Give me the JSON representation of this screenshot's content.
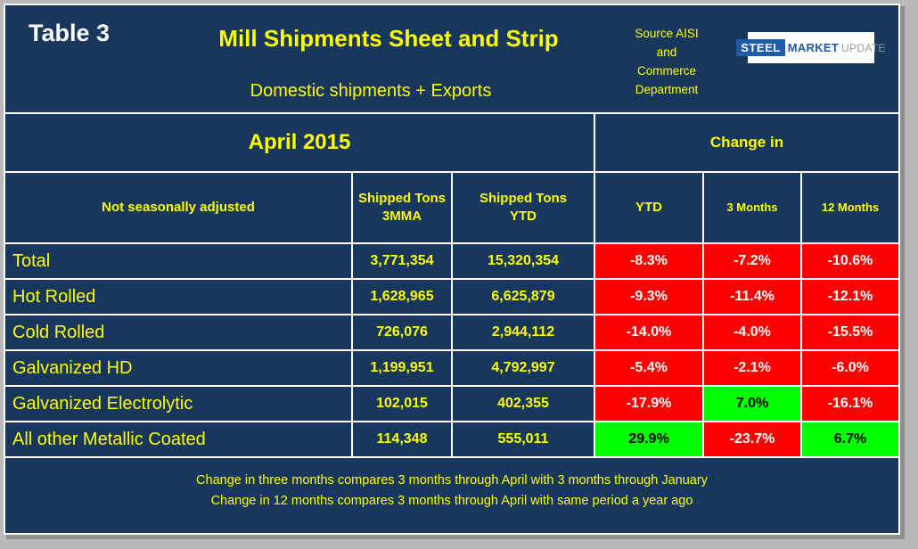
{
  "header": {
    "table_label": "Table 3",
    "source_text": "Source AISI\nand\nCommerce\nDepartment",
    "logo": {
      "steel": "STEEL",
      "market": "MARKET",
      "update": "UPDATE"
    }
  },
  "chart_data": {
    "type": "table",
    "title": "Mill Shipments Sheet and Strip",
    "subtitle": "Domestic shipments + Exports",
    "period": "April 2015",
    "change_group_label": "Change in",
    "columns": [
      "Not seasonally adjusted",
      "Shipped Tons 3MMA",
      "Shipped Tons YTD",
      "YTD",
      "3 Months",
      "12 Months"
    ],
    "rows": [
      {
        "label": "Total",
        "tons_3mma": "3,771,354",
        "tons_ytd": "15,320,354",
        "ytd": "-8.3%",
        "three_months": "-7.2%",
        "twelve_months": "-10.6%"
      },
      {
        "label": "Hot Rolled",
        "tons_3mma": "1,628,965",
        "tons_ytd": "6,625,879",
        "ytd": "-9.3%",
        "three_months": "-11.4%",
        "twelve_months": "-12.1%"
      },
      {
        "label": "Cold Rolled",
        "tons_3mma": "726,076",
        "tons_ytd": "2,944,112",
        "ytd": "-14.0%",
        "three_months": "-4.0%",
        "twelve_months": "-15.5%"
      },
      {
        "label": "Galvanized HD",
        "tons_3mma": "1,199,951",
        "tons_ytd": "4,792,997",
        "ytd": "-5.4%",
        "three_months": "-2.1%",
        "twelve_months": "-6.0%"
      },
      {
        "label": "Galvanized Electrolytic",
        "tons_3mma": "102,015",
        "tons_ytd": "402,355",
        "ytd": "-17.9%",
        "three_months": "7.0%",
        "twelve_months": "-16.1%"
      },
      {
        "label": "All other Metallic Coated",
        "tons_3mma": "114,348",
        "tons_ytd": "555,011",
        "ytd": "29.9%",
        "three_months": "-23.7%",
        "twelve_months": "6.7%"
      }
    ],
    "negative_color": "#FF0000",
    "positive_color": "#00FF00",
    "background_color": "#17375D",
    "text_color": "#FFFF00"
  },
  "footnotes": [
    "Change in three months compares 3 months through April with 3 months through January",
    "Change in 12 months compares 3 months through April with same period a year ago"
  ]
}
